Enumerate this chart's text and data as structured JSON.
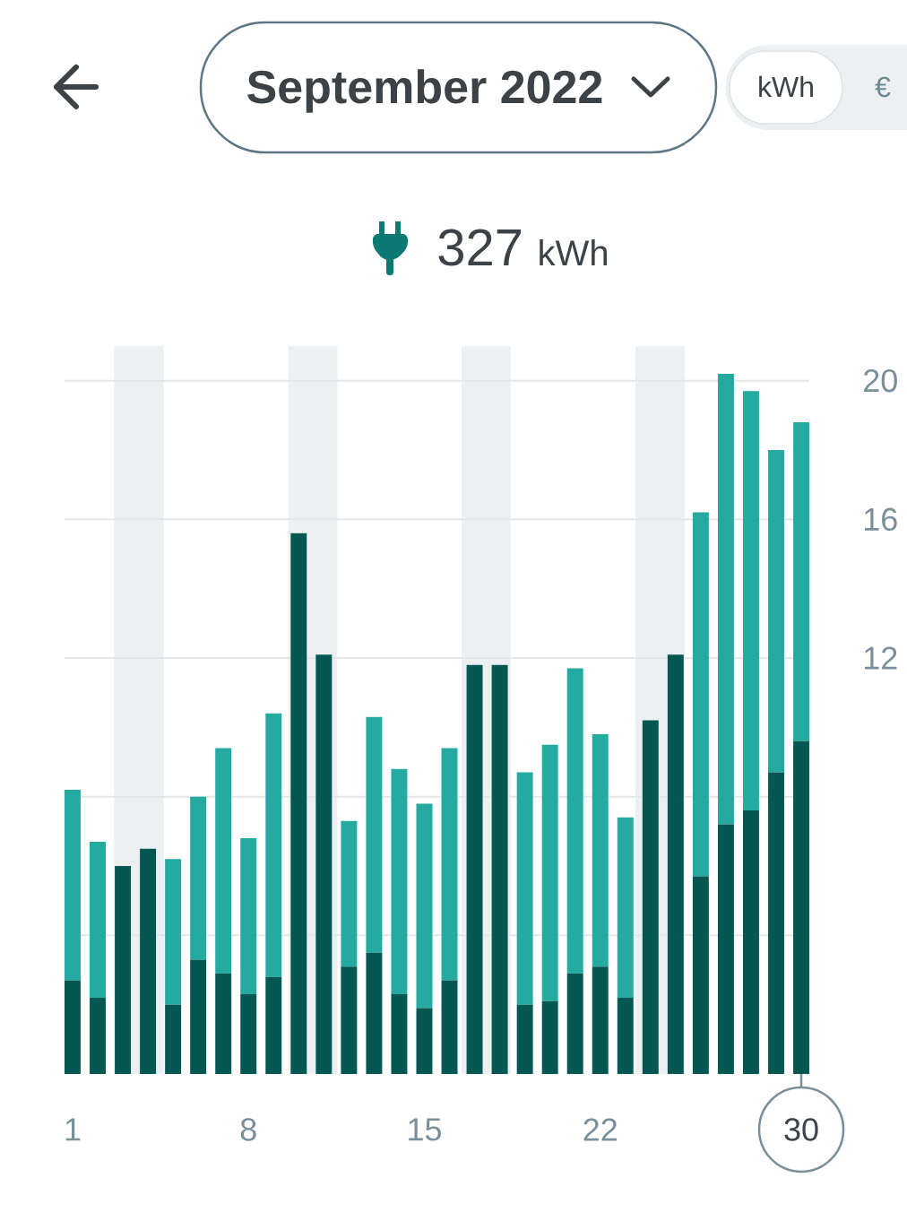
{
  "chart_data": {
    "type": "bar",
    "stacked": true,
    "title": "September 2022",
    "subtitle": "327",
    "annotations": [
      "kWh",
      "€",
      "kWh"
    ],
    "x": [
      1,
      2,
      3,
      4,
      5,
      6,
      7,
      8,
      9,
      10,
      11,
      12,
      13,
      14,
      15,
      16,
      17,
      18,
      19,
      20,
      21,
      22,
      23,
      24,
      25,
      26,
      27,
      28,
      29,
      30
    ],
    "series": [
      {
        "color": "#055752",
        "values": [
          2.7,
          2.2,
          6.0,
          6.5,
          2.0,
          3.3,
          2.9,
          2.3,
          2.8,
          15.6,
          12.1,
          3.1,
          3.5,
          2.3,
          1.9,
          2.7,
          11.8,
          11.8,
          2.0,
          2.1,
          2.9,
          3.1,
          2.2,
          10.2,
          12.1,
          5.7,
          7.2,
          7.6,
          8.7,
          9.6
        ]
      },
      {
        "color": "#24aaa1",
        "values": [
          5.5,
          4.5,
          0,
          0,
          4.2,
          4.7,
          6.5,
          4.5,
          7.6,
          0,
          0,
          4.2,
          6.8,
          6.5,
          5.9,
          6.7,
          0,
          0,
          6.7,
          7.4,
          8.8,
          6.7,
          5.2,
          0,
          0,
          10.5,
          13.0,
          12.1,
          9.3,
          9.2
        ]
      }
    ],
    "xlim": [
      0.68,
      30.32
    ],
    "xticks": [
      1,
      8,
      15,
      22,
      30
    ],
    "ylim": [
      0,
      21
    ],
    "yticks": [
      {
        "value": 4,
        "label": null
      },
      {
        "value": 8,
        "label": null
      },
      12,
      16,
      20
    ],
    "grid": "y",
    "bands": [
      {
        "axis": "x",
        "from": 2.65,
        "to": 4.63,
        "color": "#edf0f2"
      },
      {
        "axis": "x",
        "from": 9.59,
        "to": 11.54,
        "color": "#edf0f2"
      },
      {
        "axis": "x",
        "from": 16.48,
        "to": 18.44,
        "color": "#edf0f2"
      },
      {
        "axis": "x",
        "from": 23.4,
        "to": 25.36,
        "color": "#edf0f2"
      }
    ]
  }
}
